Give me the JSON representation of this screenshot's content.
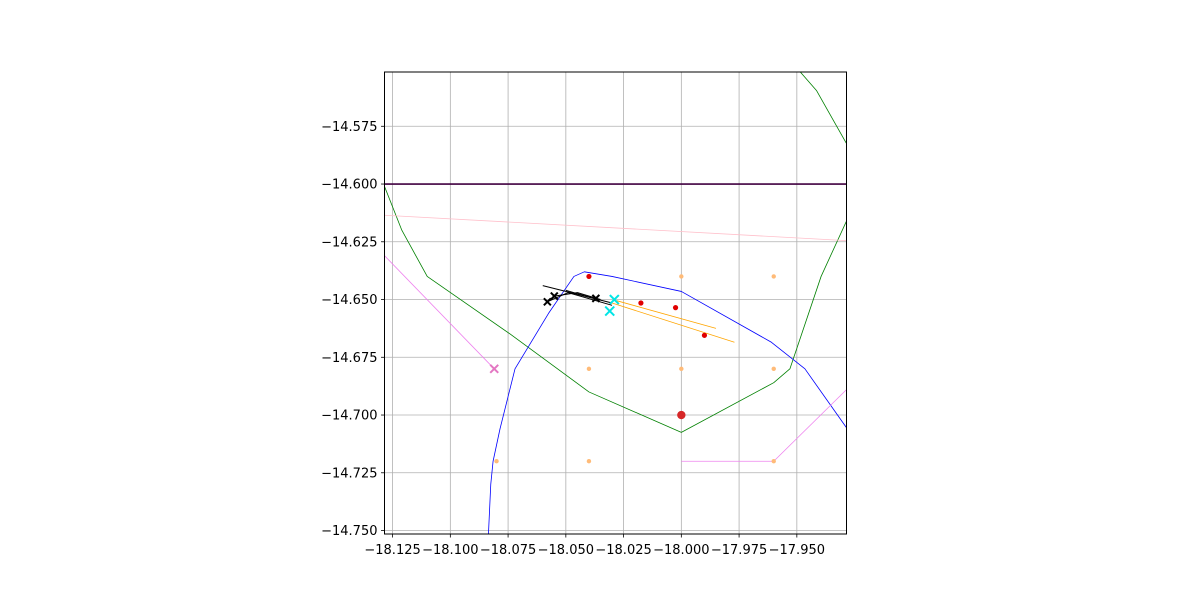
{
  "chart_data": {
    "type": "scatter",
    "title": "",
    "xlabel": "",
    "ylabel": "",
    "xlim": [
      -18.1285,
      -17.9285
    ],
    "ylim": [
      -14.7515,
      -14.5515
    ],
    "grid": true,
    "xticks": [
      -18.125,
      -18.1,
      -18.075,
      -18.05,
      -18.025,
      -18.0,
      -17.975,
      -17.95
    ],
    "xtick_labels": [
      "−18.125",
      "−18.100",
      "−18.075",
      "−18.050",
      "−18.025",
      "−18.000",
      "−17.975",
      "−17.950"
    ],
    "yticks": [
      -14.575,
      -14.6,
      -14.625,
      -14.65,
      -14.675,
      -14.7,
      -14.725,
      -14.75
    ],
    "ytick_labels": [
      "−14.575",
      "−14.600",
      "−14.625",
      "−14.650",
      "−14.675",
      "−14.700",
      "−14.725",
      "−14.750"
    ],
    "lines": [
      {
        "color": "#008000",
        "width": 0.8,
        "points": [
          [
            -18.1285,
            -14.553
          ],
          [
            -18.1285,
            -14.601
          ],
          [
            -18.121,
            -14.62
          ],
          [
            -18.11,
            -14.64
          ],
          [
            -18.074,
            -14.665
          ],
          [
            -18.04,
            -14.69
          ],
          [
            -18.0,
            -14.7075
          ],
          [
            -17.96,
            -14.686
          ],
          [
            -17.953,
            -14.68
          ],
          [
            -17.9395,
            -14.64
          ],
          [
            -17.9285,
            -14.616
          ]
        ]
      },
      {
        "color": "#008000",
        "width": 0.8,
        "points": [
          [
            -17.9485,
            -14.5515
          ],
          [
            -17.9415,
            -14.5595
          ],
          [
            -17.9285,
            -14.5825
          ]
        ]
      },
      {
        "color": "#0000ff",
        "width": 0.8,
        "points": [
          [
            -18.0835,
            -14.7515
          ],
          [
            -18.0825,
            -14.73
          ],
          [
            -18.0815,
            -14.72
          ],
          [
            -18.0785,
            -14.706
          ],
          [
            -18.072,
            -14.68
          ],
          [
            -18.0575,
            -14.656
          ],
          [
            -18.0465,
            -14.64
          ],
          [
            -18.042,
            -14.638
          ],
          [
            -18.03,
            -14.64
          ],
          [
            -18.0,
            -14.6465
          ],
          [
            -17.961,
            -14.6685
          ],
          [
            -17.9465,
            -14.68
          ],
          [
            -17.9285,
            -14.7055
          ]
        ]
      },
      {
        "color": "#ffc0cb",
        "width": 0.8,
        "points": [
          [
            -18.1285,
            -14.6135
          ],
          [
            -17.9285,
            -14.6245
          ]
        ]
      },
      {
        "color": "#ee82ee",
        "width": 0.8,
        "points": [
          [
            -18.1285,
            -14.631
          ],
          [
            -18.081,
            -14.68
          ]
        ]
      },
      {
        "color": "#ee82ee",
        "width": 0.8,
        "points": [
          [
            -18.0,
            -14.72
          ],
          [
            -17.96,
            -14.72
          ],
          [
            -17.9285,
            -14.689
          ]
        ]
      },
      {
        "color": "#ffa500",
        "width": 0.8,
        "points": [
          [
            -18.03,
            -14.6515
          ],
          [
            -17.977,
            -14.6685
          ]
        ]
      },
      {
        "color": "#ffa500",
        "width": 0.8,
        "points": [
          [
            -18.028,
            -14.6505
          ],
          [
            -17.985,
            -14.6625
          ]
        ]
      },
      {
        "color": "#000000",
        "width": 1.0,
        "points": [
          [
            -18.06,
            -14.644
          ],
          [
            -18.03,
            -14.6515
          ]
        ]
      },
      {
        "color": "#000000",
        "width": 1.0,
        "points": [
          [
            -18.058,
            -14.651
          ],
          [
            -18.049,
            -14.647
          ],
          [
            -18.03,
            -14.6525
          ]
        ]
      },
      {
        "color": "#000000",
        "width": 1.0,
        "points": [
          [
            -18.055,
            -14.6485
          ],
          [
            -18.045,
            -14.647
          ],
          [
            -18.035,
            -14.65
          ]
        ]
      },
      {
        "color": "#000000",
        "width": 1.0,
        "points": [
          [
            -18.05,
            -14.646
          ],
          [
            -18.038,
            -14.6495
          ]
        ]
      },
      {
        "color": "#400040",
        "width": 1.6,
        "points": [
          [
            -18.1285,
            -14.6
          ],
          [
            -17.9285,
            -14.6
          ]
        ]
      }
    ],
    "point_sets": [
      {
        "color": "#ffbb78",
        "marker": "dot",
        "size": 2.2,
        "points": [
          [
            -18.0,
            -14.64
          ],
          [
            -17.96,
            -14.64
          ],
          [
            -18.04,
            -14.68
          ],
          [
            -18.0,
            -14.68
          ],
          [
            -17.96,
            -14.68
          ],
          [
            -18.08,
            -14.72
          ],
          [
            -18.04,
            -14.72
          ],
          [
            -17.96,
            -14.72
          ]
        ]
      },
      {
        "color": "#e00000",
        "marker": "dot",
        "size": 2.6,
        "points": [
          [
            -18.04,
            -14.64
          ],
          [
            -18.0175,
            -14.6515
          ],
          [
            -18.0025,
            -14.6535
          ],
          [
            -17.99,
            -14.6655
          ]
        ]
      },
      {
        "color": "#d62728",
        "marker": "dot",
        "size": 4.2,
        "points": [
          [
            -18.0,
            -14.7
          ]
        ]
      },
      {
        "color": "#00e5e5",
        "marker": "x",
        "size": 4.5,
        "points": [
          [
            -18.029,
            -14.65
          ],
          [
            -18.031,
            -14.655
          ]
        ]
      },
      {
        "color": "#e377c2",
        "marker": "x",
        "size": 4.0,
        "points": [
          [
            -18.081,
            -14.68
          ]
        ]
      },
      {
        "color": "#000000",
        "marker": "x",
        "size": 3.5,
        "points": [
          [
            -18.058,
            -14.651
          ],
          [
            -18.055,
            -14.6485
          ],
          [
            -18.037,
            -14.6495
          ]
        ]
      }
    ]
  }
}
